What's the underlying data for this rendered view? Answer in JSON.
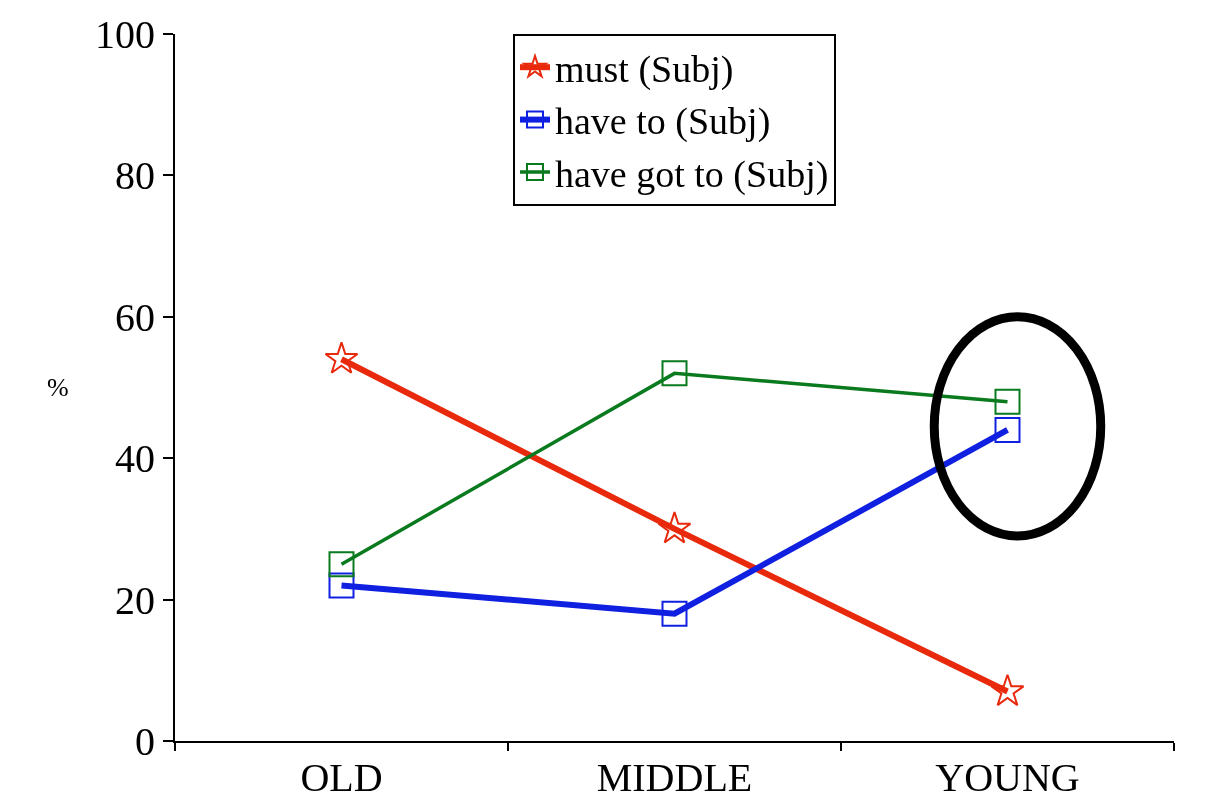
{
  "chart_data": {
    "type": "line",
    "ylabel": "%",
    "categories": [
      "OLD",
      "MIDDLE",
      "YOUNG"
    ],
    "series": [
      {
        "name": "must (Subj)",
        "color": "#e8290b",
        "values": [
          54,
          30,
          7
        ],
        "marker": "star"
      },
      {
        "name": "have to (Subj)",
        "color": "#1020e0",
        "values": [
          22,
          18,
          44
        ],
        "marker": "square"
      },
      {
        "name": "have got to (Subj)",
        "color": "#0a7a1e",
        "values": [
          25,
          52,
          48
        ],
        "marker": "square"
      }
    ],
    "ylim": [
      0,
      100
    ],
    "yticks": [
      0,
      20,
      40,
      60,
      80,
      100
    ],
    "grid": false,
    "legend": "top"
  }
}
